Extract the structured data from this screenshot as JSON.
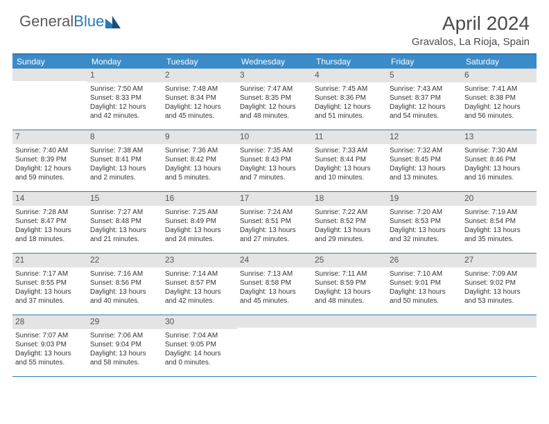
{
  "logo": {
    "part1": "General",
    "part2": "Blue"
  },
  "header": {
    "title": "April 2024",
    "location": "Gravalos, La Rioja, Spain"
  },
  "dow": [
    "Sunday",
    "Monday",
    "Tuesday",
    "Wednesday",
    "Thursday",
    "Friday",
    "Saturday"
  ],
  "colors": {
    "header_bg": "#3b8bc8",
    "border": "#2a7ab8",
    "daynum_bg": "#e4e4e4",
    "text": "#333333"
  },
  "weeks": [
    [
      {
        "day": "",
        "lines": []
      },
      {
        "day": "1",
        "lines": [
          "Sunrise: 7:50 AM",
          "Sunset: 8:33 PM",
          "Daylight: 12 hours",
          "and 42 minutes."
        ]
      },
      {
        "day": "2",
        "lines": [
          "Sunrise: 7:48 AM",
          "Sunset: 8:34 PM",
          "Daylight: 12 hours",
          "and 45 minutes."
        ]
      },
      {
        "day": "3",
        "lines": [
          "Sunrise: 7:47 AM",
          "Sunset: 8:35 PM",
          "Daylight: 12 hours",
          "and 48 minutes."
        ]
      },
      {
        "day": "4",
        "lines": [
          "Sunrise: 7:45 AM",
          "Sunset: 8:36 PM",
          "Daylight: 12 hours",
          "and 51 minutes."
        ]
      },
      {
        "day": "5",
        "lines": [
          "Sunrise: 7:43 AM",
          "Sunset: 8:37 PM",
          "Daylight: 12 hours",
          "and 54 minutes."
        ]
      },
      {
        "day": "6",
        "lines": [
          "Sunrise: 7:41 AM",
          "Sunset: 8:38 PM",
          "Daylight: 12 hours",
          "and 56 minutes."
        ]
      }
    ],
    [
      {
        "day": "7",
        "lines": [
          "Sunrise: 7:40 AM",
          "Sunset: 8:39 PM",
          "Daylight: 12 hours",
          "and 59 minutes."
        ]
      },
      {
        "day": "8",
        "lines": [
          "Sunrise: 7:38 AM",
          "Sunset: 8:41 PM",
          "Daylight: 13 hours",
          "and 2 minutes."
        ]
      },
      {
        "day": "9",
        "lines": [
          "Sunrise: 7:36 AM",
          "Sunset: 8:42 PM",
          "Daylight: 13 hours",
          "and 5 minutes."
        ]
      },
      {
        "day": "10",
        "lines": [
          "Sunrise: 7:35 AM",
          "Sunset: 8:43 PM",
          "Daylight: 13 hours",
          "and 7 minutes."
        ]
      },
      {
        "day": "11",
        "lines": [
          "Sunrise: 7:33 AM",
          "Sunset: 8:44 PM",
          "Daylight: 13 hours",
          "and 10 minutes."
        ]
      },
      {
        "day": "12",
        "lines": [
          "Sunrise: 7:32 AM",
          "Sunset: 8:45 PM",
          "Daylight: 13 hours",
          "and 13 minutes."
        ]
      },
      {
        "day": "13",
        "lines": [
          "Sunrise: 7:30 AM",
          "Sunset: 8:46 PM",
          "Daylight: 13 hours",
          "and 16 minutes."
        ]
      }
    ],
    [
      {
        "day": "14",
        "lines": [
          "Sunrise: 7:28 AM",
          "Sunset: 8:47 PM",
          "Daylight: 13 hours",
          "and 18 minutes."
        ]
      },
      {
        "day": "15",
        "lines": [
          "Sunrise: 7:27 AM",
          "Sunset: 8:48 PM",
          "Daylight: 13 hours",
          "and 21 minutes."
        ]
      },
      {
        "day": "16",
        "lines": [
          "Sunrise: 7:25 AM",
          "Sunset: 8:49 PM",
          "Daylight: 13 hours",
          "and 24 minutes."
        ]
      },
      {
        "day": "17",
        "lines": [
          "Sunrise: 7:24 AM",
          "Sunset: 8:51 PM",
          "Daylight: 13 hours",
          "and 27 minutes."
        ]
      },
      {
        "day": "18",
        "lines": [
          "Sunrise: 7:22 AM",
          "Sunset: 8:52 PM",
          "Daylight: 13 hours",
          "and 29 minutes."
        ]
      },
      {
        "day": "19",
        "lines": [
          "Sunrise: 7:20 AM",
          "Sunset: 8:53 PM",
          "Daylight: 13 hours",
          "and 32 minutes."
        ]
      },
      {
        "day": "20",
        "lines": [
          "Sunrise: 7:19 AM",
          "Sunset: 8:54 PM",
          "Daylight: 13 hours",
          "and 35 minutes."
        ]
      }
    ],
    [
      {
        "day": "21",
        "lines": [
          "Sunrise: 7:17 AM",
          "Sunset: 8:55 PM",
          "Daylight: 13 hours",
          "and 37 minutes."
        ]
      },
      {
        "day": "22",
        "lines": [
          "Sunrise: 7:16 AM",
          "Sunset: 8:56 PM",
          "Daylight: 13 hours",
          "and 40 minutes."
        ]
      },
      {
        "day": "23",
        "lines": [
          "Sunrise: 7:14 AM",
          "Sunset: 8:57 PM",
          "Daylight: 13 hours",
          "and 42 minutes."
        ]
      },
      {
        "day": "24",
        "lines": [
          "Sunrise: 7:13 AM",
          "Sunset: 8:58 PM",
          "Daylight: 13 hours",
          "and 45 minutes."
        ]
      },
      {
        "day": "25",
        "lines": [
          "Sunrise: 7:11 AM",
          "Sunset: 8:59 PM",
          "Daylight: 13 hours",
          "and 48 minutes."
        ]
      },
      {
        "day": "26",
        "lines": [
          "Sunrise: 7:10 AM",
          "Sunset: 9:01 PM",
          "Daylight: 13 hours",
          "and 50 minutes."
        ]
      },
      {
        "day": "27",
        "lines": [
          "Sunrise: 7:09 AM",
          "Sunset: 9:02 PM",
          "Daylight: 13 hours",
          "and 53 minutes."
        ]
      }
    ],
    [
      {
        "day": "28",
        "lines": [
          "Sunrise: 7:07 AM",
          "Sunset: 9:03 PM",
          "Daylight: 13 hours",
          "and 55 minutes."
        ]
      },
      {
        "day": "29",
        "lines": [
          "Sunrise: 7:06 AM",
          "Sunset: 9:04 PM",
          "Daylight: 13 hours",
          "and 58 minutes."
        ]
      },
      {
        "day": "30",
        "lines": [
          "Sunrise: 7:04 AM",
          "Sunset: 9:05 PM",
          "Daylight: 14 hours",
          "and 0 minutes."
        ]
      },
      {
        "day": "",
        "lines": []
      },
      {
        "day": "",
        "lines": []
      },
      {
        "day": "",
        "lines": []
      },
      {
        "day": "",
        "lines": []
      }
    ]
  ]
}
